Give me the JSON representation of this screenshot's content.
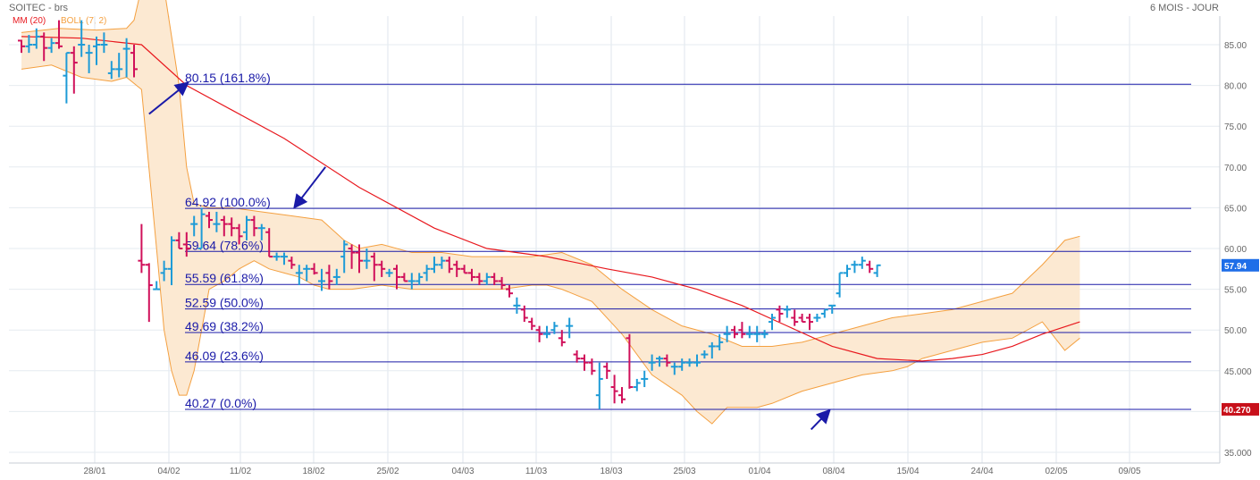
{
  "header": {
    "title": "SOITEC - brs",
    "period": "6 MOIS - JOUR"
  },
  "legend": {
    "ma_label": "MM (20)",
    "ma_color": "#e8181e",
    "boll_label": "BOLL (7, 2)",
    "boll_color": "#f4a040"
  },
  "colors": {
    "up": "#1e9bd7",
    "down": "#d0105a",
    "ma": "#e8181e",
    "boll_fill": "#fce9d2",
    "boll_line": "#f4a040",
    "fib_line": "#1a1aa8",
    "arrow": "#1a1aa8",
    "last_price_bg": "#1e6ee8",
    "low_price_bg": "#c8101a"
  },
  "chart_data": {
    "type": "ohlc",
    "ylim": [
      34,
      90
    ],
    "y_ticks": [
      "35.000",
      "40.00",
      "45.000",
      "50.00",
      "55.00",
      "60.00",
      "65.00",
      "70.00",
      "75.00",
      "80.00",
      "85.00"
    ],
    "x_ticks": [
      "28/01",
      "04/02",
      "11/02",
      "18/02",
      "25/02",
      "04/03",
      "11/03",
      "18/03",
      "25/03",
      "01/04",
      "08/04",
      "15/04",
      "24/04",
      "02/05",
      "09/05"
    ],
    "fib_levels": [
      {
        "value": 80.15,
        "label": "80.15  (161.8%)"
      },
      {
        "value": 64.92,
        "label": "64.92  (100.0%)"
      },
      {
        "value": 59.64,
        "label": "59.64  (78.6%)"
      },
      {
        "value": 55.59,
        "label": "55.59  (61.8%)"
      },
      {
        "value": 52.59,
        "label": "52.59  (50.0%)"
      },
      {
        "value": 49.69,
        "label": "49.69  (38.2%)"
      },
      {
        "value": 46.09,
        "label": "46.09  (23.6%)"
      },
      {
        "value": 40.27,
        "label": "40.27  (0.0%)"
      }
    ],
    "last_price": "57.94",
    "low_price": "40.270",
    "ohlc": [
      [
        85.5,
        85.6,
        84.0,
        84.8
      ],
      [
        84.8,
        86.2,
        84.0,
        85.0
      ],
      [
        85.0,
        87.0,
        84.5,
        86.0
      ],
      [
        86.0,
        86.5,
        83.0,
        84.6
      ],
      [
        84.6,
        85.8,
        84.0,
        85.2
      ],
      [
        85.2,
        88.0,
        84.5,
        84.8
      ],
      [
        81.2,
        84.0,
        77.8,
        84.0
      ],
      [
        84.0,
        84.8,
        79.0,
        82.8
      ],
      [
        85.0,
        88.0,
        83.5,
        85.0
      ],
      [
        84.0,
        85.0,
        81.5,
        84.0
      ],
      [
        84.8,
        86.0,
        82.5,
        85.0
      ],
      [
        85.0,
        86.5,
        84.0,
        85.0
      ],
      [
        81.5,
        83.0,
        80.8,
        82.0
      ],
      [
        82.0,
        84.0,
        81.0,
        82.0
      ],
      [
        84.5,
        85.8,
        81.0,
        84.5
      ],
      [
        84.0,
        85.0,
        81.0,
        82.0
      ],
      [
        58.5,
        63.0,
        57.0,
        58.0
      ],
      [
        58.0,
        58.2,
        51.0,
        55.5
      ],
      [
        55.0,
        56.0,
        55.0,
        55.0
      ],
      [
        57.0,
        58.5,
        56.0,
        57.5
      ],
      [
        57.5,
        61.5,
        55.5,
        61.0
      ],
      [
        61.0,
        62.0,
        60.0,
        60.0
      ],
      [
        60.5,
        62.0,
        59.0,
        60.0
      ],
      [
        63.0,
        64.0,
        61.5,
        63.0
      ],
      [
        60.0,
        65.0,
        60.0,
        64.2
      ],
      [
        64.0,
        64.5,
        62.5,
        63.5
      ],
      [
        63.0,
        64.5,
        62.0,
        63.0
      ],
      [
        63.5,
        64.0,
        61.5,
        63.0
      ],
      [
        63.0,
        63.8,
        61.5,
        62.5
      ],
      [
        62.5,
        63.0,
        60.5,
        61.5
      ],
      [
        62.0,
        64.0,
        61.0,
        63.5
      ],
      [
        63.5,
        64.0,
        61.5,
        62.5
      ],
      [
        62.5,
        63.0,
        61.0,
        62.5
      ],
      [
        62.0,
        62.5,
        59.0,
        59.0
      ],
      [
        59.0,
        59.5,
        58.5,
        59.0
      ],
      [
        59.0,
        59.5,
        58.0,
        59.0
      ],
      [
        58.5,
        59.0,
        57.5,
        58.0
      ],
      [
        57.0,
        58.0,
        55.5,
        57.0
      ],
      [
        57.5,
        58.0,
        56.0,
        57.5
      ],
      [
        57.5,
        58.2,
        56.8,
        57.0
      ],
      [
        56.0,
        57.5,
        54.8,
        56.0
      ],
      [
        57.0,
        58.0,
        55.0,
        56.0
      ],
      [
        56.5,
        57.5,
        55.5,
        56.5
      ],
      [
        59.0,
        61.0,
        57.0,
        60.5
      ],
      [
        60.0,
        60.5,
        57.5,
        59.5
      ],
      [
        59.5,
        60.5,
        57.0,
        58.5
      ],
      [
        58.5,
        60.0,
        57.5,
        58.5
      ],
      [
        59.0,
        59.5,
        56.0,
        58.0
      ],
      [
        58.0,
        58.5,
        56.5,
        57.5
      ],
      [
        57.0,
        57.5,
        56.5,
        57.0
      ],
      [
        57.5,
        58.0,
        55.0,
        56.5
      ],
      [
        56.5,
        57.0,
        56.0,
        56.0
      ],
      [
        56.0,
        57.0,
        55.0,
        56.0
      ],
      [
        56.0,
        57.0,
        55.5,
        56.5
      ],
      [
        57.0,
        58.0,
        56.0,
        57.5
      ],
      [
        57.5,
        59.0,
        57.0,
        58.0
      ],
      [
        58.0,
        59.0,
        57.5,
        58.5
      ],
      [
        58.5,
        59.0,
        57.0,
        57.5
      ],
      [
        58.0,
        58.5,
        56.5,
        57.5
      ],
      [
        57.5,
        58.0,
        57.0,
        57.0
      ],
      [
        57.0,
        57.5,
        56.0,
        56.5
      ],
      [
        56.5,
        57.0,
        55.5,
        56.0
      ],
      [
        56.0,
        57.0,
        55.5,
        56.5
      ],
      [
        56.5,
        57.0,
        55.5,
        56.0
      ],
      [
        56.0,
        56.5,
        55.0,
        55.5
      ],
      [
        55.0,
        55.5,
        54.0,
        54.5
      ],
      [
        53.0,
        54.0,
        52.0,
        53.0
      ],
      [
        52.5,
        53.0,
        51.0,
        51.5
      ],
      [
        51.0,
        51.5,
        50.0,
        50.5
      ],
      [
        50.0,
        50.5,
        48.5,
        49.5
      ],
      [
        49.5,
        50.5,
        49.0,
        49.5
      ],
      [
        50.0,
        51.0,
        49.5,
        50.5
      ],
      [
        49.0,
        50.0,
        48.0,
        48.5
      ],
      [
        50.5,
        51.5,
        49.0,
        50.5
      ],
      [
        47.0,
        47.5,
        46.0,
        46.5
      ],
      [
        46.5,
        47.0,
        45.0,
        46.0
      ],
      [
        46.0,
        46.5,
        44.5,
        45.0
      ],
      [
        42.0,
        46.0,
        40.27,
        44.0
      ],
      [
        45.5,
        46.0,
        44.0,
        45.0
      ],
      [
        43.0,
        44.5,
        41.0,
        42.5
      ],
      [
        42.0,
        43.0,
        41.0,
        41.5
      ],
      [
        49.0,
        49.5,
        42.8,
        43.0
      ],
      [
        43.0,
        44.0,
        42.5,
        43.5
      ],
      [
        44.0,
        45.0,
        43.0,
        44.0
      ],
      [
        46.0,
        47.0,
        45.0,
        46.0
      ],
      [
        46.5,
        46.8,
        45.5,
        46.5
      ],
      [
        46.5,
        47.0,
        45.5,
        46.0
      ],
      [
        45.5,
        46.0,
        44.5,
        45.5
      ],
      [
        45.5,
        46.5,
        45.0,
        46.0
      ],
      [
        46.0,
        46.5,
        45.5,
        46.0
      ],
      [
        46.0,
        47.0,
        45.5,
        46.0
      ],
      [
        47.0,
        47.5,
        46.5,
        47.0
      ],
      [
        48.0,
        48.5,
        46.5,
        48.0
      ],
      [
        48.0,
        49.5,
        47.5,
        48.5
      ],
      [
        49.5,
        50.5,
        48.5,
        49.5
      ],
      [
        50.0,
        50.5,
        49.0,
        49.5
      ],
      [
        50.0,
        51.0,
        49.0,
        49.5
      ],
      [
        49.5,
        50.5,
        49.0,
        49.5
      ],
      [
        49.5,
        50.5,
        48.5,
        49.5
      ],
      [
        49.5,
        50.0,
        49.0,
        49.5
      ],
      [
        51.0,
        52.0,
        50.0,
        51.5
      ],
      [
        52.5,
        53.0,
        51.0,
        52.0
      ],
      [
        52.5,
        53.0,
        51.5,
        52.5
      ],
      [
        51.5,
        52.5,
        50.5,
        51.0
      ],
      [
        51.5,
        52.0,
        51.0,
        51.0
      ],
      [
        51.5,
        52.0,
        50.0,
        51.0
      ],
      [
        51.5,
        52.0,
        51.0,
        51.5
      ],
      [
        52.0,
        52.5,
        51.5,
        52.5
      ],
      [
        53.0,
        53.0,
        52.0,
        53.0
      ],
      [
        54.5,
        57.0,
        54.0,
        57.0
      ],
      [
        57.0,
        58.0,
        56.5,
        57.5
      ],
      [
        58.0,
        58.5,
        57.0,
        58.0
      ],
      [
        58.0,
        59.0,
        57.5,
        58.5
      ],
      [
        58.0,
        58.5,
        57.0,
        57.5
      ],
      [
        57.0,
        58.0,
        56.5,
        57.94
      ]
    ],
    "ma20": [
      [
        0,
        86.0
      ],
      [
        8,
        85.8
      ],
      [
        16,
        85.0
      ],
      [
        22,
        80.0
      ],
      [
        28,
        77.0
      ],
      [
        35,
        73.5
      ],
      [
        45,
        67.5
      ],
      [
        55,
        62.5
      ],
      [
        62,
        60.0
      ],
      [
        70,
        59.0
      ],
      [
        78,
        57.5
      ],
      [
        84,
        56.5
      ],
      [
        90,
        55.0
      ],
      [
        96,
        53.0
      ],
      [
        102,
        50.5
      ],
      [
        108,
        48.0
      ],
      [
        114,
        46.5
      ],
      [
        120,
        46.2
      ],
      [
        124,
        46.5
      ],
      [
        128,
        47.0
      ],
      [
        132,
        48.0
      ],
      [
        136,
        49.5
      ],
      [
        141,
        51.0
      ]
    ],
    "boll_upper": [
      [
        0,
        86.5
      ],
      [
        5,
        87.0
      ],
      [
        10,
        86.8
      ],
      [
        14,
        87.0
      ],
      [
        15,
        88.0
      ],
      [
        16,
        92.0
      ],
      [
        19,
        92.0
      ],
      [
        21,
        80.0
      ],
      [
        22,
        70.0
      ],
      [
        23,
        65.5
      ],
      [
        25,
        65.0
      ],
      [
        28,
        65.0
      ],
      [
        32,
        64.5
      ],
      [
        36,
        64.0
      ],
      [
        40,
        63.5
      ],
      [
        43,
        61.0
      ],
      [
        45,
        60.0
      ],
      [
        48,
        60.5
      ],
      [
        52,
        59.5
      ],
      [
        56,
        59.5
      ],
      [
        60,
        59.0
      ],
      [
        64,
        59.0
      ],
      [
        68,
        59.0
      ],
      [
        72,
        59.5
      ],
      [
        76,
        58.0
      ],
      [
        80,
        55.0
      ],
      [
        84,
        52.5
      ],
      [
        88,
        50.5
      ],
      [
        92,
        49.5
      ],
      [
        96,
        48.0
      ],
      [
        100,
        48.0
      ],
      [
        104,
        48.5
      ],
      [
        108,
        49.5
      ],
      [
        112,
        50.5
      ],
      [
        116,
        51.5
      ],
      [
        120,
        52.0
      ],
      [
        124,
        52.5
      ],
      [
        128,
        53.5
      ],
      [
        132,
        54.5
      ],
      [
        136,
        58.0
      ],
      [
        139,
        61.0
      ],
      [
        141,
        61.5
      ]
    ],
    "boll_lower": [
      [
        0,
        82.0
      ],
      [
        4,
        82.5
      ],
      [
        8,
        81.0
      ],
      [
        12,
        80.5
      ],
      [
        14,
        81.0
      ],
      [
        16,
        79.5
      ],
      [
        18,
        60.0
      ],
      [
        19,
        50.0
      ],
      [
        20,
        45.0
      ],
      [
        21,
        42.0
      ],
      [
        22,
        42.0
      ],
      [
        23,
        45.0
      ],
      [
        24,
        50.0
      ],
      [
        25,
        55.0
      ],
      [
        27,
        56.0
      ],
      [
        29,
        57.5
      ],
      [
        31,
        58.5
      ],
      [
        33,
        57.5
      ],
      [
        35,
        57.0
      ],
      [
        37,
        56.5
      ],
      [
        39,
        55.5
      ],
      [
        41,
        55.0
      ],
      [
        44,
        55.0
      ],
      [
        48,
        55.5
      ],
      [
        52,
        55.0
      ],
      [
        56,
        55.0
      ],
      [
        60,
        55.0
      ],
      [
        64,
        55.0
      ],
      [
        68,
        55.5
      ],
      [
        70,
        55.5
      ],
      [
        72,
        55.0
      ],
      [
        76,
        53.5
      ],
      [
        80,
        49.5
      ],
      [
        84,
        44.5
      ],
      [
        88,
        42.0
      ],
      [
        90,
        40.0
      ],
      [
        92,
        38.5
      ],
      [
        94,
        40.5
      ],
      [
        98,
        40.5
      ],
      [
        100,
        41.0
      ],
      [
        104,
        42.5
      ],
      [
        108,
        43.5
      ],
      [
        112,
        44.5
      ],
      [
        116,
        45.0
      ],
      [
        118,
        45.5
      ],
      [
        120,
        46.5
      ],
      [
        124,
        47.5
      ],
      [
        128,
        48.5
      ],
      [
        132,
        49.0
      ],
      [
        136,
        51.0
      ],
      [
        139,
        47.5
      ],
      [
        141,
        49.0
      ]
    ],
    "arrows": [
      {
        "from_index": 17,
        "from_value": 76.5,
        "to_index": 22.0,
        "to_value": 80.2
      },
      {
        "from_index": 40.5,
        "from_value": 70.0,
        "to_index": 36.5,
        "to_value": 65.2
      },
      {
        "from_index": 105.2,
        "from_value": 37.8,
        "to_index": 107.5,
        "to_value": 40.0
      }
    ]
  }
}
